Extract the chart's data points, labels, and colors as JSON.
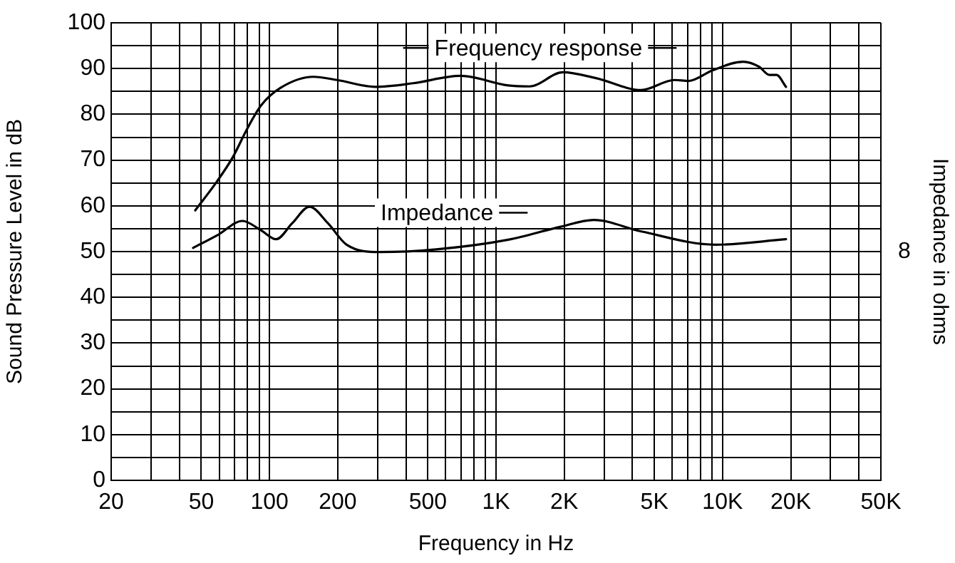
{
  "chart_data": {
    "type": "line",
    "xlabel": "Frequency in Hz",
    "ylabel": "Sound Pressure Level in dB",
    "y2label": "Impedance in ohms",
    "log": "x",
    "grid": true,
    "legend": "top",
    "marker": "none",
    "line_style": "solid",
    "xlim": [
      20,
      50000
    ],
    "xticks": [
      20,
      {
        "value": 30,
        "label": null
      },
      {
        "value": 40,
        "label": null
      },
      50,
      {
        "value": 60,
        "label": null
      },
      {
        "value": 70,
        "label": null
      },
      {
        "value": 80,
        "label": null
      },
      {
        "value": 90,
        "label": null
      },
      100,
      200,
      {
        "value": 300,
        "label": null
      },
      {
        "value": 400,
        "label": null
      },
      500,
      {
        "value": 600,
        "label": null
      },
      {
        "value": 700,
        "label": null
      },
      {
        "value": 800,
        "label": null
      },
      {
        "value": 900,
        "label": null
      },
      {
        "value": 1000,
        "label": "1K"
      },
      {
        "value": 2000,
        "label": "2K"
      },
      {
        "value": 3000,
        "label": null
      },
      {
        "value": 4000,
        "label": null
      },
      {
        "value": 5000,
        "label": "5K"
      },
      {
        "value": 6000,
        "label": null
      },
      {
        "value": 7000,
        "label": null
      },
      {
        "value": 8000,
        "label": null
      },
      {
        "value": 9000,
        "label": null
      },
      {
        "value": 10000,
        "label": "10K"
      },
      {
        "value": 20000,
        "label": "20K"
      },
      {
        "value": 30000,
        "label": null
      },
      {
        "value": 40000,
        "label": null
      },
      {
        "value": 50000,
        "label": "50K"
      }
    ],
    "ylim": [
      0,
      100
    ],
    "yticks": [
      0,
      {
        "value": 5,
        "label": null
      },
      10,
      {
        "value": 15,
        "label": null
      },
      20,
      {
        "value": 25,
        "label": null
      },
      30,
      {
        "value": 35,
        "label": null
      },
      40,
      {
        "value": 45,
        "label": null
      },
      50,
      {
        "value": 55,
        "label": null
      },
      60,
      {
        "value": 65,
        "label": null
      },
      70,
      {
        "value": 75,
        "label": null
      },
      80,
      {
        "value": 85,
        "label": null
      },
      90,
      {
        "value": 95,
        "label": null
      },
      100
    ],
    "annotations": [
      "8"
    ],
    "series": [
      {
        "name": "Frequency response",
        "color": "#000000",
        "x": [
          47,
          58,
          69,
          80,
          92,
          112,
          156,
          199,
          293,
          431,
          698,
          1132,
          1406,
          1973,
          2762,
          4379,
          6130,
          7080,
          9020,
          12340,
          14500,
          16100,
          17300,
          19060
        ],
        "values": [
          59,
          65,
          70.7,
          77,
          82,
          85.8,
          88.2,
          87.5,
          86,
          86.8,
          88.4,
          86.3,
          86.1,
          89.2,
          87.9,
          85.3,
          87.5,
          87.3,
          89.6,
          91.5,
          90.4,
          88.6,
          88.6,
          86
        ]
      },
      {
        "name": "Impedance",
        "color": "#000000",
        "x": [
          46,
          59,
          76,
          92,
          107,
          126,
          150,
          181,
          219,
          307,
          546,
          1132,
          1917,
          2700,
          4380,
          9300,
          19060
        ],
        "values": [
          50.8,
          53.6,
          56.7,
          54.6,
          52.7,
          56.2,
          59.8,
          56.2,
          51.5,
          49.9,
          50.5,
          52.6,
          55.4,
          56.9,
          54.4,
          51.5,
          52.7
        ]
      }
    ]
  }
}
